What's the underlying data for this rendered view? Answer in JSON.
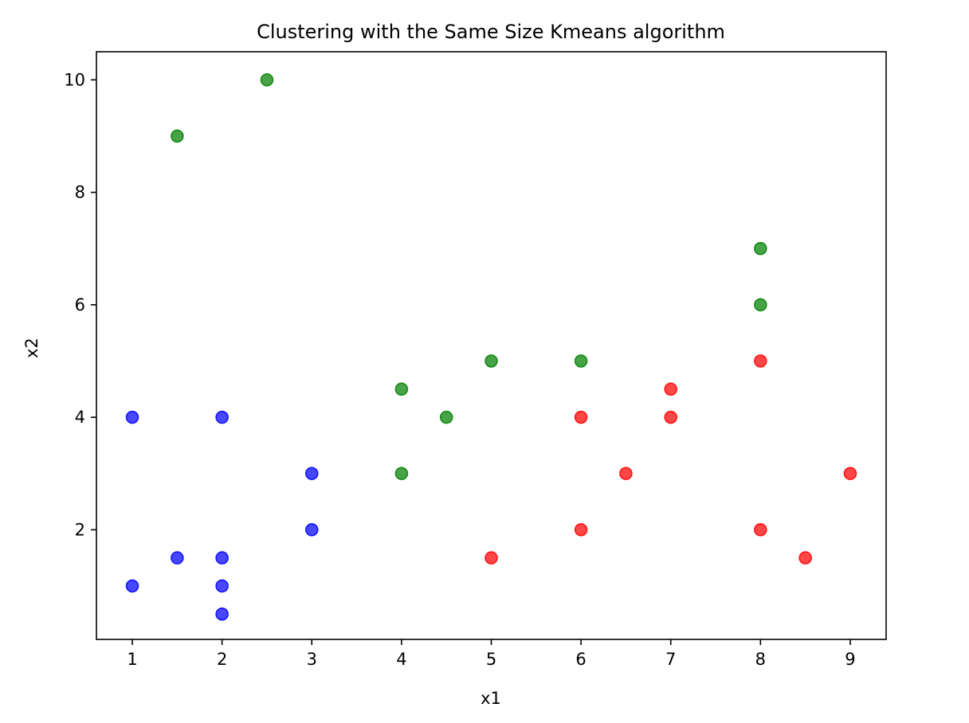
{
  "chart_data": {
    "type": "scatter",
    "title": "Clustering with the Same Size Kmeans algorithm",
    "xlabel": "x1",
    "ylabel": "x2",
    "xlim": [
      0.6,
      9.4
    ],
    "ylim": [
      0.05,
      10.5
    ],
    "xticks": [
      1,
      2,
      3,
      4,
      5,
      6,
      7,
      8,
      9
    ],
    "yticks": [
      2,
      4,
      6,
      8,
      10
    ],
    "grid": false,
    "series": [
      {
        "color": "#0000ff",
        "points": [
          [
            1,
            4
          ],
          [
            1,
            1
          ],
          [
            1.5,
            1.5
          ],
          [
            2,
            4
          ],
          [
            2,
            1.5
          ],
          [
            2,
            1
          ],
          [
            2,
            0.5
          ],
          [
            3,
            3
          ],
          [
            3,
            2
          ]
        ]
      },
      {
        "color": "#008000",
        "points": [
          [
            1.5,
            9
          ],
          [
            2.5,
            10
          ],
          [
            4,
            4.5
          ],
          [
            4,
            3
          ],
          [
            4.5,
            4
          ],
          [
            5,
            5
          ],
          [
            6,
            5
          ],
          [
            8,
            7
          ],
          [
            8,
            6
          ]
        ]
      },
      {
        "color": "#ff0000",
        "points": [
          [
            5,
            1.5
          ],
          [
            6,
            4
          ],
          [
            6,
            2
          ],
          [
            6.5,
            3
          ],
          [
            7,
            4.5
          ],
          [
            7,
            4
          ],
          [
            8,
            5
          ],
          [
            8,
            2
          ],
          [
            8.5,
            1.5
          ],
          [
            9,
            3
          ]
        ]
      }
    ]
  }
}
